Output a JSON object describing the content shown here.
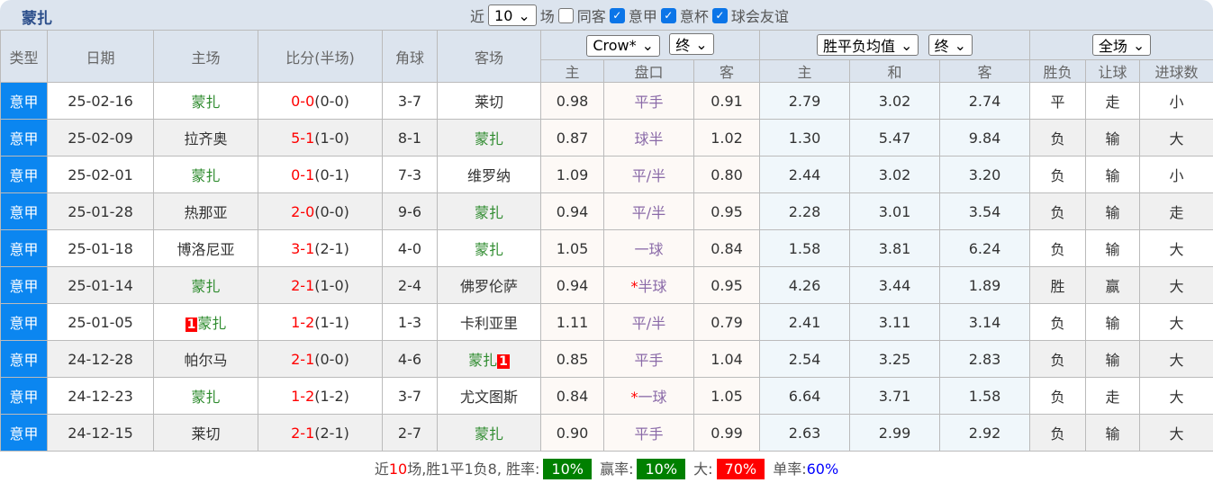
{
  "header": {
    "team": "蒙扎",
    "near_label": "近",
    "count": "10",
    "games_label": "场",
    "same_label": "同客",
    "same_checked": false,
    "filters": [
      {
        "label": "意甲",
        "checked": true
      },
      {
        "label": "意杯",
        "checked": true
      },
      {
        "label": "球会友谊",
        "checked": true
      }
    ]
  },
  "selects": {
    "company": "Crow*",
    "company_time": "终",
    "avg": "胜平负均值",
    "avg_time": "终",
    "period": "全场"
  },
  "columns": {
    "type": "类型",
    "date": "日期",
    "home": "主场",
    "score": "比分(半场)",
    "corner": "角球",
    "away": "客场",
    "o_home": "主",
    "o_line": "盘口",
    "o_away": "客",
    "e_home": "主",
    "e_draw": "和",
    "e_away": "客",
    "wl": "胜负",
    "hc": "让球",
    "goals": "进球数"
  },
  "rows": [
    {
      "type": "意甲",
      "date": "25-02-16",
      "home": "蒙扎",
      "ft": "0-0",
      "ht": "(0-0)",
      "corner": "3-7",
      "away": "莱切",
      "oh": "0.98",
      "line": "平手",
      "oa": "0.91",
      "eh": "2.79",
      "ed": "3.02",
      "ea": "2.74",
      "wl": "平",
      "hc": "走",
      "goals": "小"
    },
    {
      "type": "意甲",
      "date": "25-02-09",
      "home": "拉齐奥",
      "ft": "5-1",
      "ht": "(1-0)",
      "corner": "8-1",
      "away": "蒙扎",
      "oh": "0.87",
      "line": "球半",
      "oa": "1.02",
      "eh": "1.30",
      "ed": "5.47",
      "ea": "9.84",
      "wl": "负",
      "hc": "输",
      "goals": "大"
    },
    {
      "type": "意甲",
      "date": "25-02-01",
      "home": "蒙扎",
      "ft": "0-1",
      "ht": "(0-1)",
      "corner": "7-3",
      "away": "维罗纳",
      "oh": "1.09",
      "line": "平/半",
      "oa": "0.80",
      "eh": "2.44",
      "ed": "3.02",
      "ea": "3.20",
      "wl": "负",
      "hc": "输",
      "goals": "小"
    },
    {
      "type": "意甲",
      "date": "25-01-28",
      "home": "热那亚",
      "ft": "2-0",
      "ht": "(0-0)",
      "corner": "9-6",
      "away": "蒙扎",
      "oh": "0.94",
      "line": "平/半",
      "oa": "0.95",
      "eh": "2.28",
      "ed": "3.01",
      "ea": "3.54",
      "wl": "负",
      "hc": "输",
      "goals": "走"
    },
    {
      "type": "意甲",
      "date": "25-01-18",
      "home": "博洛尼亚",
      "ft": "3-1",
      "ht": "(2-1)",
      "corner": "4-0",
      "away": "蒙扎",
      "oh": "1.05",
      "line": "一球",
      "oa": "0.84",
      "eh": "1.58",
      "ed": "3.81",
      "ea": "6.24",
      "wl": "负",
      "hc": "输",
      "goals": "大"
    },
    {
      "type": "意甲",
      "date": "25-01-14",
      "home": "蒙扎",
      "ft": "2-1",
      "ht": "(1-0)",
      "corner": "2-4",
      "away": "佛罗伦萨",
      "oh": "0.94",
      "line_star": "*",
      "line": "半球",
      "oa": "0.95",
      "eh": "4.26",
      "ed": "3.44",
      "ea": "1.89",
      "wl": "胜",
      "hc": "赢",
      "goals": "大"
    },
    {
      "type": "意甲",
      "date": "25-01-05",
      "home_card": "1",
      "home": "蒙扎",
      "ft": "1-2",
      "ht": "(1-1)",
      "corner": "1-3",
      "away": "卡利亚里",
      "oh": "1.11",
      "line": "平/半",
      "oa": "0.79",
      "eh": "2.41",
      "ed": "3.11",
      "ea": "3.14",
      "wl": "负",
      "hc": "输",
      "goals": "大"
    },
    {
      "type": "意甲",
      "date": "24-12-28",
      "home": "帕尔马",
      "ft": "2-1",
      "ht": "(0-0)",
      "corner": "4-6",
      "away": "蒙扎",
      "away_card": "1",
      "oh": "0.85",
      "line": "平手",
      "oa": "1.04",
      "eh": "2.54",
      "ed": "3.25",
      "ea": "2.83",
      "wl": "负",
      "hc": "输",
      "goals": "大"
    },
    {
      "type": "意甲",
      "date": "24-12-23",
      "home": "蒙扎",
      "ft": "1-2",
      "ht": "(1-2)",
      "corner": "3-7",
      "away": "尤文图斯",
      "oh": "0.84",
      "line_star": "*",
      "line": "一球",
      "oa": "1.05",
      "eh": "6.64",
      "ed": "3.71",
      "ea": "1.58",
      "wl": "负",
      "hc": "走",
      "goals": "大"
    },
    {
      "type": "意甲",
      "date": "24-12-15",
      "home": "莱切",
      "ft": "2-1",
      "ht": "(2-1)",
      "corner": "2-7",
      "away": "蒙扎",
      "oh": "0.90",
      "line": "平手",
      "oa": "0.99",
      "eh": "2.63",
      "ed": "2.99",
      "ea": "2.92",
      "wl": "负",
      "hc": "输",
      "goals": "大"
    }
  ],
  "summary": {
    "prefix": "近",
    "count": "10",
    "text": "场,胜1平1负8,",
    "win_label": "胜率:",
    "win": "10%",
    "hc_label": "赢率:",
    "hc": "10%",
    "big_label": "大:",
    "big": "70%",
    "odd_label": "单率:",
    "odd": "60%"
  },
  "colors": {
    "type_bg": "#0b86f0",
    "green_badge": "#008000",
    "red_badge": "#ff0000",
    "header_bg": "#dce4ee"
  }
}
